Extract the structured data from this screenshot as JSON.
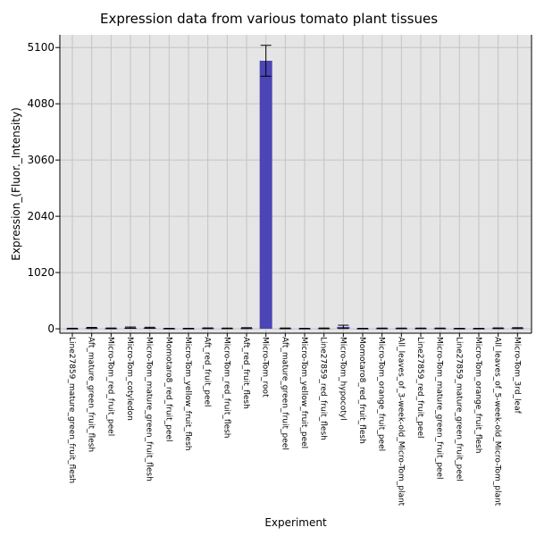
{
  "chart_data": {
    "type": "bar",
    "title": "Expression data from various tomato plant tissues",
    "xlabel": "Experiment",
    "ylabel": "Expression_(Fluor._Intensity)",
    "ylim": [
      -80,
      5330
    ],
    "yticks": [
      0,
      1020,
      2040,
      3060,
      4080,
      5100
    ],
    "grid": true,
    "bar_color": "#4b45b5",
    "plot_background": "#e5e5e5",
    "grid_color": "#c4c4c4",
    "categories": [
      "Line27859_mature_green_fruit_flesh",
      "Aft_mature_green_fruit_flesh",
      "Micro-Tom_red_fruit_peel",
      "Micro-Tom_cotyledon",
      "Micro-Tom_mature_green_fruit_flesh",
      "Momotaro8_red_fruit_peel",
      "Micro-Tom_yellow_fruit_flesh",
      "Aft_red_fruit_peel",
      "Micro-Tom_red_fruit_flesh",
      "Aft_red_fruit_flesh",
      "Micro-Tom_root",
      "Aft_mature_green_fruit_peel",
      "Micro-Tom_yellow_fruit_peel",
      "Line27859_red_fruit_flesh",
      "Micro-Tom_hypocotyl",
      "Momotaro8_red_fruit_flesh",
      "Micro-Tom_orange_fruit_peel",
      "All_leaves_of_3-week-old_Micro-Tom_plant",
      "Line27859_red_fruit_peel",
      "Micro-Tom_mature_green_fruit_peel",
      "Line27859_mature_green_fruit_peel",
      "Micro-Tom_orange_fruit_flesh",
      "All_leaves_of_5-week-old_Micro-Tom_plant",
      "Micro-Tom_3rd_leaf"
    ],
    "values": [
      5,
      15,
      8,
      20,
      18,
      5,
      5,
      10,
      8,
      12,
      4860,
      8,
      5,
      8,
      35,
      5,
      8,
      8,
      8,
      8,
      5,
      5,
      10,
      12
    ],
    "errors": [
      5,
      10,
      6,
      12,
      10,
      4,
      4,
      6,
      5,
      8,
      280,
      6,
      4,
      6,
      30,
      4,
      5,
      5,
      5,
      5,
      4,
      4,
      6,
      8
    ]
  }
}
